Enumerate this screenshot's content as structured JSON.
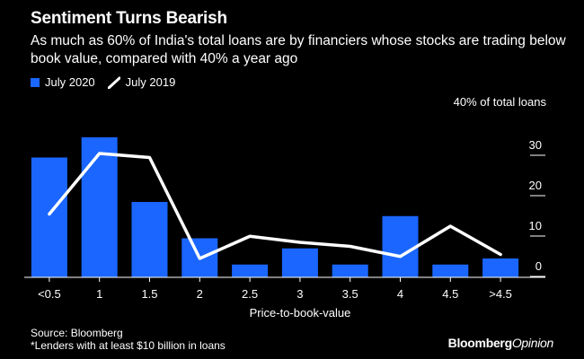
{
  "title": "Sentiment Turns Bearish",
  "subtitle": "As much as 60% of India's total loans are by financiers whose stocks are trading below book value, compared with 40% a year ago",
  "unit_label": "40% of total loans",
  "source": "Source: Bloomberg",
  "footnote": "*Lenders with at least $10 billion in loans",
  "brand": {
    "main": "Bloomberg",
    "sub": "Opinion"
  },
  "colors": {
    "bar": "#1a66ff",
    "line": "#ffffff",
    "background": "#000000"
  },
  "chart_data": {
    "type": "bar",
    "title": "Sentiment Turns Bearish",
    "xlabel": "Price-to-book-value",
    "ylabel": "% of total loans",
    "categories": [
      "<0.5",
      "1",
      "1.5",
      "2",
      "2.5",
      "3",
      "3.5",
      "4",
      "4.5",
      ">4.5"
    ],
    "yticks": [
      0,
      10,
      20,
      30
    ],
    "ylim": [
      -3,
      40
    ],
    "series": [
      {
        "name": "July 2020",
        "type": "bar",
        "values": [
          27,
          32,
          16,
          7,
          0.5,
          4.5,
          0.5,
          12.5,
          0.5,
          2
        ]
      },
      {
        "name": "July 2019",
        "type": "line",
        "values": [
          13,
          28,
          27,
          2,
          7.5,
          6,
          5,
          2.5,
          10,
          3
        ]
      }
    ]
  }
}
